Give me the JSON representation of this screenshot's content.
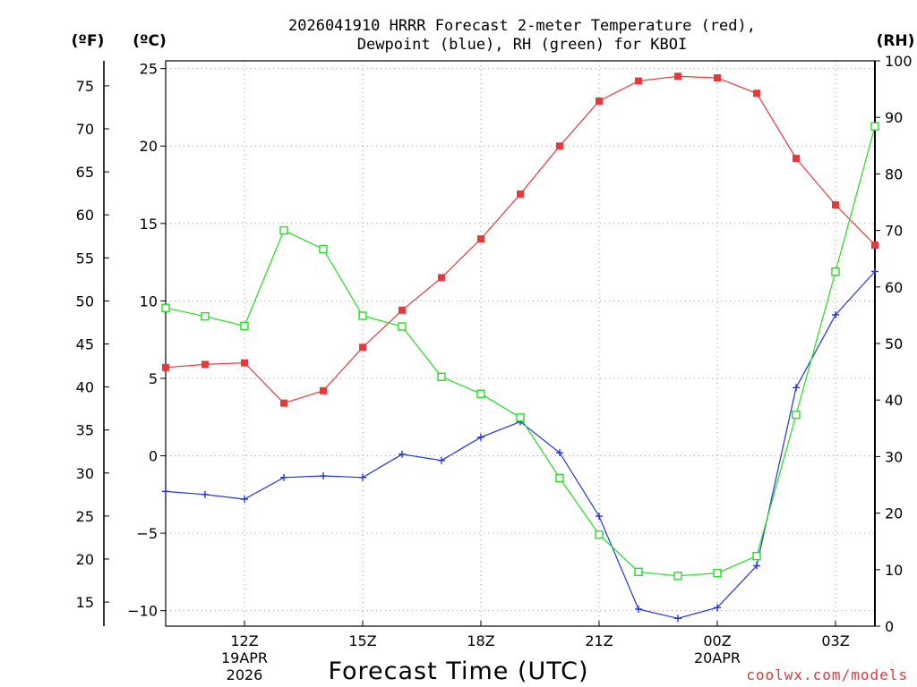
{
  "chart_data": {
    "type": "line",
    "title_lines": [
      "2026041910 HRRR Forecast 2-meter Temperature (red),",
      "Dewpoint (blue), RH (green) for KBOI"
    ],
    "units": {
      "fahrenheit": "(ºF)",
      "celsius": "(ºC)",
      "rh": "(RH)"
    },
    "xlabel": "Forecast Time (UTC)",
    "credit": "coolwx.com/models",
    "x_hours": [
      9,
      10,
      11,
      12,
      13,
      14,
      15,
      16,
      17,
      18,
      19,
      20,
      21,
      22,
      23,
      24,
      25,
      26,
      27
    ],
    "xlim_hours": [
      9,
      27
    ],
    "x_ticks": [
      {
        "hour": 11,
        "lines": [
          "12Z",
          "19APR",
          "2026"
        ]
      },
      {
        "hour": 14,
        "lines": [
          "15Z"
        ]
      },
      {
        "hour": 17,
        "lines": [
          "18Z"
        ]
      },
      {
        "hour": 20,
        "lines": [
          "21Z"
        ]
      },
      {
        "hour": 23,
        "lines": [
          "00Z",
          "20APR"
        ]
      },
      {
        "hour": 26,
        "lines": [
          "03Z"
        ]
      }
    ],
    "x_gridlines_hours": [
      11,
      14,
      17,
      20,
      23,
      26
    ],
    "celsius_axis": {
      "range": [
        -11,
        25.5
      ],
      "ticks": [
        25,
        20,
        15,
        10,
        5,
        0,
        -5,
        -10
      ],
      "tick_labels": [
        "25",
        "20",
        "15",
        "10",
        "5",
        "0",
        "−5",
        "−10"
      ]
    },
    "fahrenheit_axis": {
      "ticks": [
        75,
        70,
        65,
        60,
        55,
        50,
        45,
        40,
        35,
        30,
        25,
        20,
        15
      ],
      "tick_labels": [
        "75",
        "70",
        "65",
        "60",
        "55",
        "50",
        "45",
        "40",
        "35",
        "30",
        "25",
        "20",
        "15"
      ]
    },
    "rh_axis": {
      "range": [
        0,
        100
      ],
      "ticks": [
        100,
        90,
        80,
        70,
        60,
        50,
        40,
        30,
        20,
        10,
        0
      ],
      "tick_labels": [
        "100",
        "90",
        "80",
        "70",
        "60",
        "50",
        "40",
        "30",
        "20",
        "10",
        "0"
      ]
    },
    "series": [
      {
        "name": "Temperature",
        "axis": "celsius",
        "color": "#e8383c",
        "marker": "filled-square",
        "values": [
          5.7,
          5.9,
          6.0,
          3.4,
          4.2,
          7.0,
          9.4,
          11.5,
          14.0,
          16.9,
          20.0,
          22.9,
          24.2,
          24.5,
          24.4,
          23.4,
          19.2,
          16.2,
          13.6
        ]
      },
      {
        "name": "Dewpoint",
        "axis": "celsius",
        "color": "#2233dd",
        "marker": "plus",
        "values": [
          -2.3,
          -2.5,
          -2.8,
          -1.4,
          -1.3,
          -1.4,
          0.1,
          -0.3,
          1.2,
          2.2,
          0.2,
          -3.9,
          -9.9,
          -10.5,
          -9.8,
          -7.1,
          4.4,
          9.1,
          11.9
        ]
      },
      {
        "name": "RH",
        "axis": "rh",
        "color": "#22dd22",
        "marker": "open-square",
        "values": [
          56.3,
          54.8,
          53.1,
          70.0,
          66.7,
          54.9,
          53.0,
          44.1,
          41.1,
          36.9,
          26.2,
          16.2,
          9.6,
          8.9,
          9.4,
          12.4,
          37.4,
          62.7,
          88.4
        ]
      }
    ]
  }
}
